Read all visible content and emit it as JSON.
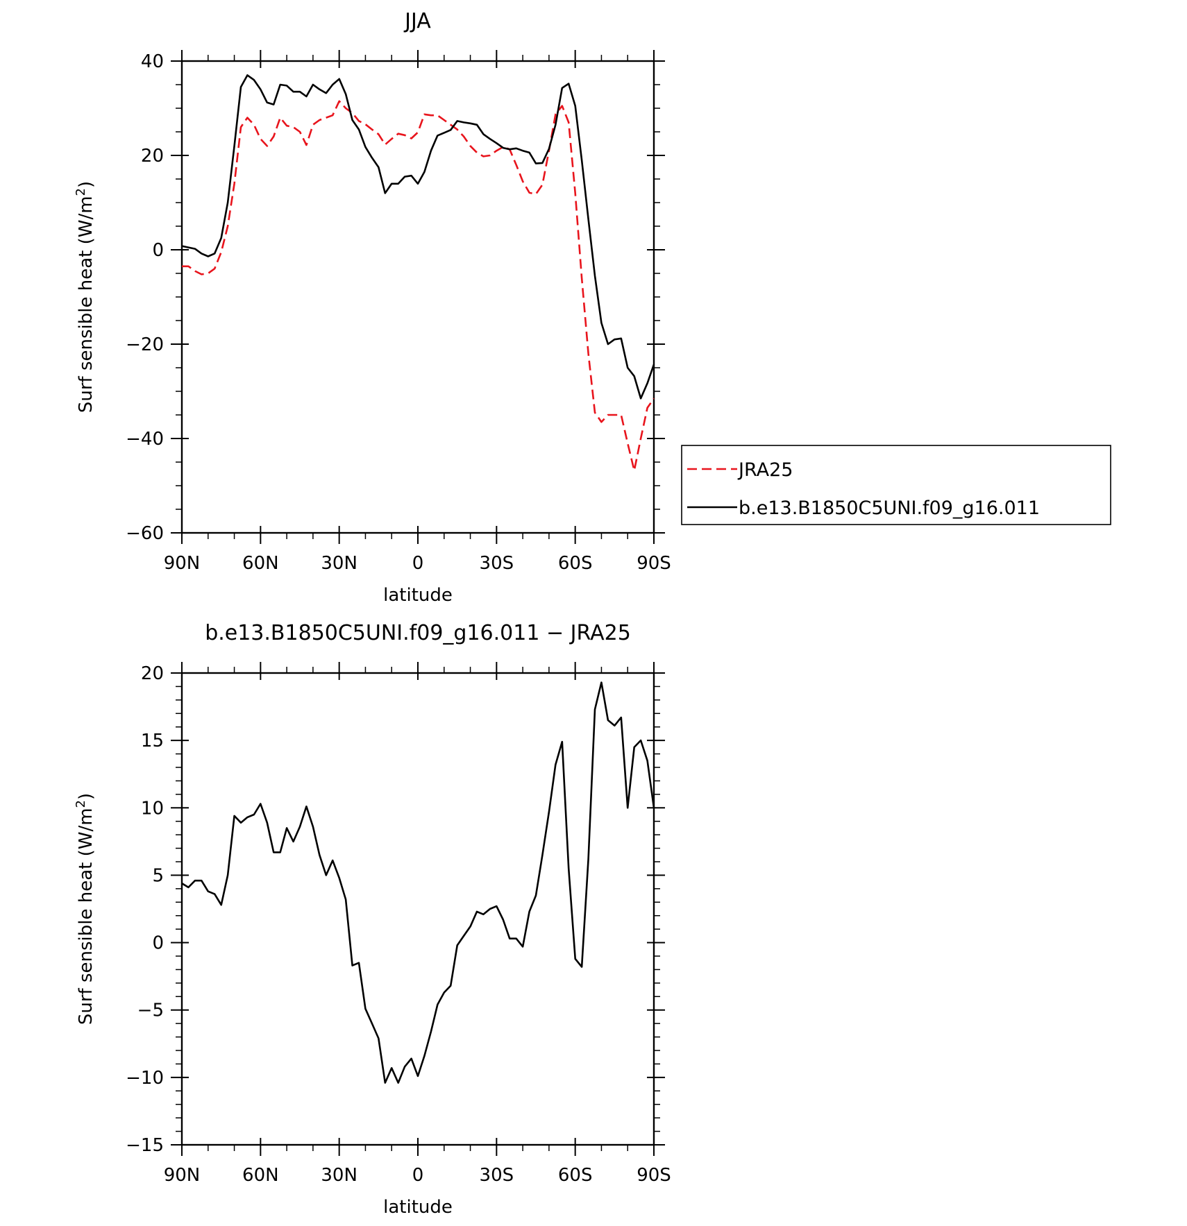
{
  "chart_data": [
    {
      "type": "line",
      "title": "JJA",
      "xlabel": "latitude",
      "ylabel": "Surf sensible heat (W/m",
      "ylabel_sup": "2",
      "ylabel_close": ")",
      "xlim": [
        90,
        -90
      ],
      "ylim": [
        -60,
        40
      ],
      "xticks": [
        {
          "v": 90,
          "label": "90N"
        },
        {
          "v": 60,
          "label": "60N"
        },
        {
          "v": 30,
          "label": "30N"
        },
        {
          "v": 0,
          "label": "0"
        },
        {
          "v": -30,
          "label": "30S"
        },
        {
          "v": -60,
          "label": "60S"
        },
        {
          "v": -90,
          "label": "90S"
        }
      ],
      "yticks": [
        {
          "v": 40,
          "label": "40"
        },
        {
          "v": 20,
          "label": "20"
        },
        {
          "v": 0,
          "label": "0"
        },
        {
          "v": -20,
          "label": "−20"
        },
        {
          "v": -40,
          "label": "−40"
        },
        {
          "v": -60,
          "label": "−60"
        }
      ],
      "legend_position": "right",
      "series": [
        {
          "name": "JRA25",
          "color": "#e8141c",
          "dash": true,
          "x": [
            90,
            87.5,
            85,
            82.5,
            80,
            77.5,
            75,
            72.5,
            70,
            67.5,
            65,
            62.5,
            60,
            57.5,
            55,
            52.5,
            50,
            47.5,
            45,
            42.5,
            40,
            37.5,
            35,
            32.5,
            30,
            27.5,
            25,
            22.5,
            20,
            17.5,
            15,
            12.5,
            10,
            7.5,
            5,
            2.5,
            0,
            -2.5,
            -5,
            -7.5,
            -10,
            -12.5,
            -15,
            -17.5,
            -20,
            -22.5,
            -25,
            -27.5,
            -30,
            -32.5,
            -35,
            -37.5,
            -40,
            -42.5,
            -45,
            -47.5,
            -50,
            -52.5,
            -55,
            -57.5,
            -60,
            -62.5,
            -65,
            -67.5,
            -70,
            -72.5,
            -75,
            -77.5,
            -80,
            -82.5,
            -85,
            -87.5,
            -90
          ],
          "y": [
            -3.5,
            -3.5,
            -4.5,
            -5.2,
            -5,
            -4,
            -0.5,
            5,
            14,
            26,
            28,
            26.5,
            23.5,
            22,
            24,
            28,
            26.3,
            26,
            25,
            22.2,
            26.5,
            27.5,
            28,
            28.5,
            31.5,
            30,
            29,
            27.3,
            26.6,
            25.5,
            24.5,
            22.3,
            23.5,
            24.6,
            24.3,
            23.6,
            24.9,
            28.7,
            28.5,
            28.5,
            27.5,
            26.5,
            25.5,
            24,
            22,
            20.6,
            19.8,
            20,
            21,
            21.8,
            21.3,
            18,
            14.5,
            12.1,
            11.8,
            13.8,
            21,
            28.7,
            30.5,
            27,
            12,
            -6,
            -22,
            -34.5,
            -36.5,
            -35,
            -35,
            -35,
            -41,
            -46.8,
            -40,
            -33.5,
            -31.5
          ]
        },
        {
          "name": "b.e13.B1850C5UNI.f09_g16.011",
          "color": "#000000",
          "dash": false,
          "x": [
            90,
            87.5,
            85,
            82.5,
            80,
            77.5,
            75,
            72.5,
            70,
            67.5,
            65,
            62.5,
            60,
            57.5,
            55,
            52.5,
            50,
            47.5,
            45,
            42.5,
            40,
            37.5,
            35,
            32.5,
            30,
            27.5,
            25,
            22.5,
            20,
            17.5,
            15,
            12.5,
            10,
            7.5,
            5,
            2.5,
            0,
            -2.5,
            -5,
            -7.5,
            -10,
            -12.5,
            -15,
            -17.5,
            -20,
            -22.5,
            -25,
            -27.5,
            -30,
            -32.5,
            -35,
            -37.5,
            -40,
            -42.5,
            -45,
            -47.5,
            -50,
            -52.5,
            -55,
            -57.5,
            -60,
            -62.5,
            -65,
            -67.5,
            -70,
            -72.5,
            -75,
            -77.5,
            -80,
            -82.5,
            -85,
            -87.5,
            -90
          ],
          "y": [
            0.8,
            0.5,
            0.2,
            -0.8,
            -1.4,
            -0.8,
            2.5,
            10,
            22,
            34.5,
            37,
            36,
            34,
            31.2,
            30.8,
            35,
            34.8,
            33.5,
            33.5,
            32.5,
            35,
            34,
            33.2,
            35,
            36.2,
            33,
            27.5,
            25.5,
            21.8,
            19.5,
            17.5,
            12,
            14,
            14,
            15.5,
            15.7,
            14,
            16.5,
            21,
            24.2,
            24.8,
            25.4,
            27.3,
            27,
            26.8,
            26.5,
            24.5,
            23.5,
            22.6,
            21.6,
            21.3,
            21.5,
            21,
            20.6,
            18.3,
            18.4,
            21.4,
            26.5,
            34.3,
            35.2,
            30.5,
            19,
            6.5,
            -5.5,
            -15.5,
            -20,
            -19,
            -18.8,
            -25,
            -26.8,
            -31.5,
            -28.3,
            -24.3
          ]
        }
      ]
    },
    {
      "type": "line",
      "title": "b.e13.B1850C5UNI.f09_g16.011 − JRA25",
      "xlabel": "latitude",
      "ylabel": "Surf sensible heat (W/m",
      "ylabel_sup": "2",
      "ylabel_close": ")",
      "xlim": [
        90,
        -90
      ],
      "ylim": [
        -15,
        20
      ],
      "xticks": [
        {
          "v": 90,
          "label": "90N"
        },
        {
          "v": 60,
          "label": "60N"
        },
        {
          "v": 30,
          "label": "30N"
        },
        {
          "v": 0,
          "label": "0"
        },
        {
          "v": -30,
          "label": "30S"
        },
        {
          "v": -60,
          "label": "60S"
        },
        {
          "v": -90,
          "label": "90S"
        }
      ],
      "yticks": [
        {
          "v": 20,
          "label": "20"
        },
        {
          "v": 15,
          "label": "15"
        },
        {
          "v": 10,
          "label": "10"
        },
        {
          "v": 5,
          "label": "5"
        },
        {
          "v": 0,
          "label": "0"
        },
        {
          "v": -5,
          "label": "−5"
        },
        {
          "v": -10,
          "label": "−10"
        },
        {
          "v": -15,
          "label": "−15"
        }
      ],
      "series": [
        {
          "color": "#000000",
          "dash": false,
          "x": [
            90,
            87.5,
            85,
            82.5,
            80,
            77.5,
            75,
            72.5,
            70,
            67.5,
            65,
            62.5,
            60,
            57.5,
            55,
            52.5,
            50,
            47.5,
            45,
            42.5,
            40,
            37.5,
            35,
            32.5,
            30,
            27.5,
            25,
            22.5,
            20,
            17.5,
            15,
            12.5,
            10,
            7.5,
            5,
            2.5,
            0,
            -2.5,
            -5,
            -7.5,
            -10,
            -12.5,
            -15,
            -17.5,
            -20,
            -22.5,
            -25,
            -27.5,
            -30,
            -32.5,
            -35,
            -37.5,
            -40,
            -42.5,
            -45,
            -47.5,
            -50,
            -52.5,
            -55,
            -57.5,
            -60,
            -62.5,
            -65,
            -67.5,
            -70,
            -72.5,
            -75,
            -77.5,
            -80,
            -82.5,
            -85,
            -87.5,
            -90
          ],
          "y": [
            4.4,
            4.1,
            4.6,
            4.6,
            3.8,
            3.6,
            2.8,
            5,
            9.4,
            8.9,
            9.3,
            9.5,
            10.3,
            8.9,
            6.7,
            6.7,
            8.5,
            7.5,
            8.6,
            10.1,
            8.6,
            6.5,
            5,
            6.1,
            4.8,
            3.2,
            -1.7,
            -1.5,
            -4.9,
            -6,
            -7.1,
            -10.4,
            -9.3,
            -10.4,
            -9.2,
            -8.6,
            -9.9,
            -8.4,
            -6.6,
            -4.6,
            -3.7,
            -3.2,
            -0.2,
            0.5,
            1.2,
            2.3,
            2.1,
            2.5,
            2.7,
            1.7,
            0.3,
            0.3,
            -0.3,
            2.3,
            3.5,
            6.5,
            9.7,
            13.2,
            14.9,
            5.5,
            -1.2,
            -1.8,
            6.2,
            17.3,
            19.3,
            16.5,
            16.1,
            16.7,
            10,
            14.5,
            15,
            13.5,
            10
          ]
        }
      ]
    }
  ]
}
